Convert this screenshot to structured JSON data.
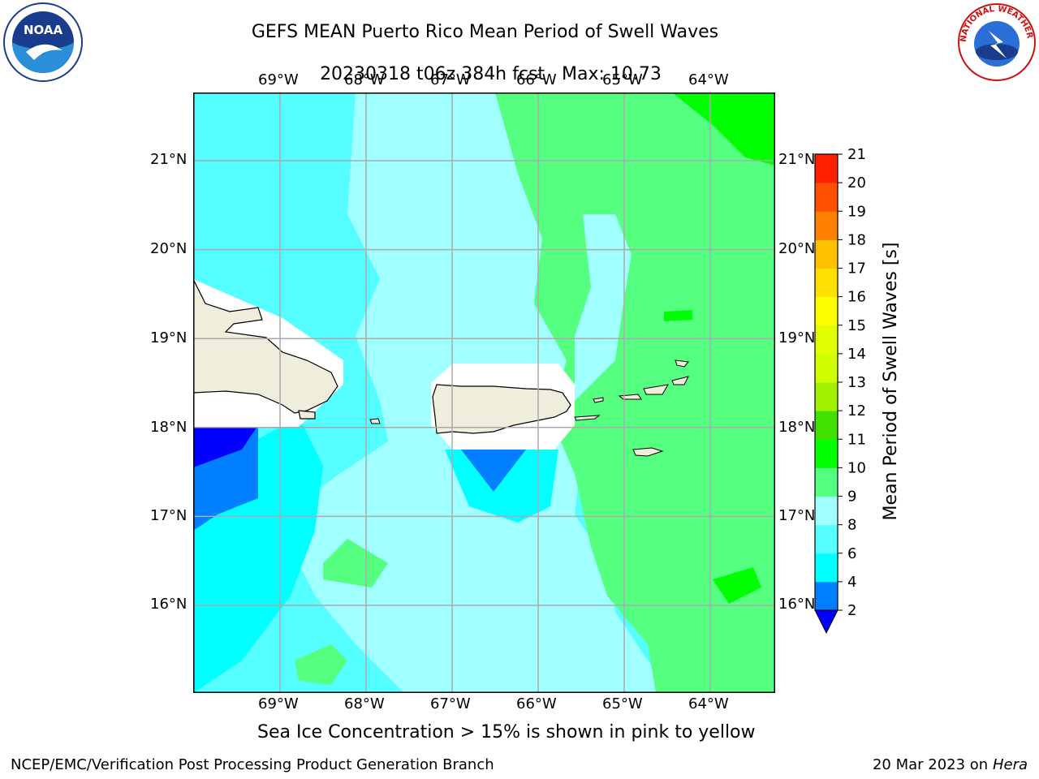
{
  "title_line1": "GEFS MEAN Puerto Rico Mean Period of Swell Waves",
  "title_line2": "20230318 t06z 384h fcst",
  "title_max": "Max: 10.73",
  "lon_ticks": [
    "69°W",
    "68°W",
    "67°W",
    "66°W",
    "65°W",
    "64°W"
  ],
  "lat_ticks": [
    "21°N",
    "20°N",
    "19°N",
    "18°N",
    "17°N",
    "16°N"
  ],
  "colorbar": {
    "label": "Mean Period of Swell Waves [s]",
    "ticks": [
      "21",
      "20",
      "19",
      "18",
      "17",
      "16",
      "15",
      "14",
      "13",
      "12",
      "11",
      "10",
      "9",
      "8",
      "6",
      "4",
      "2"
    ],
    "colors": [
      "#0000ff",
      "#0080ff",
      "#00ffff",
      "#55ffff",
      "#a0ffff",
      "#55ff80",
      "#00ff00",
      "#40e000",
      "#a0f000",
      "#d0ff00",
      "#e0ff00",
      "#ffff00",
      "#ffe000",
      "#ffc000",
      "#ff8000",
      "#ff5000",
      "#ff2000",
      "#ff0000"
    ]
  },
  "map_colors": {
    "ocean_4_6": "#00ffff",
    "ocean_6_8": "#55ffff",
    "ocean_8_9": "#a0ffff",
    "ocean_9_10": "#55ff80",
    "ocean_10_11": "#00ff00",
    "ocean_2_4": "#0080ff",
    "ocean_lt2": "#0000ff",
    "land": "#efeddb",
    "grid": "#aaaaaa"
  },
  "footnote": "Sea Ice Concentration > 15% is shown in pink to yellow",
  "credit_left": "NCEP/EMC/Verification Post Processing Product Generation Branch",
  "credit_right_date": "20 Mar 2023 on",
  "credit_right_host": "Hera",
  "logos": {
    "noaa": "NOAA",
    "nws_text": "NATIONAL WEATHER SERVICE"
  }
}
